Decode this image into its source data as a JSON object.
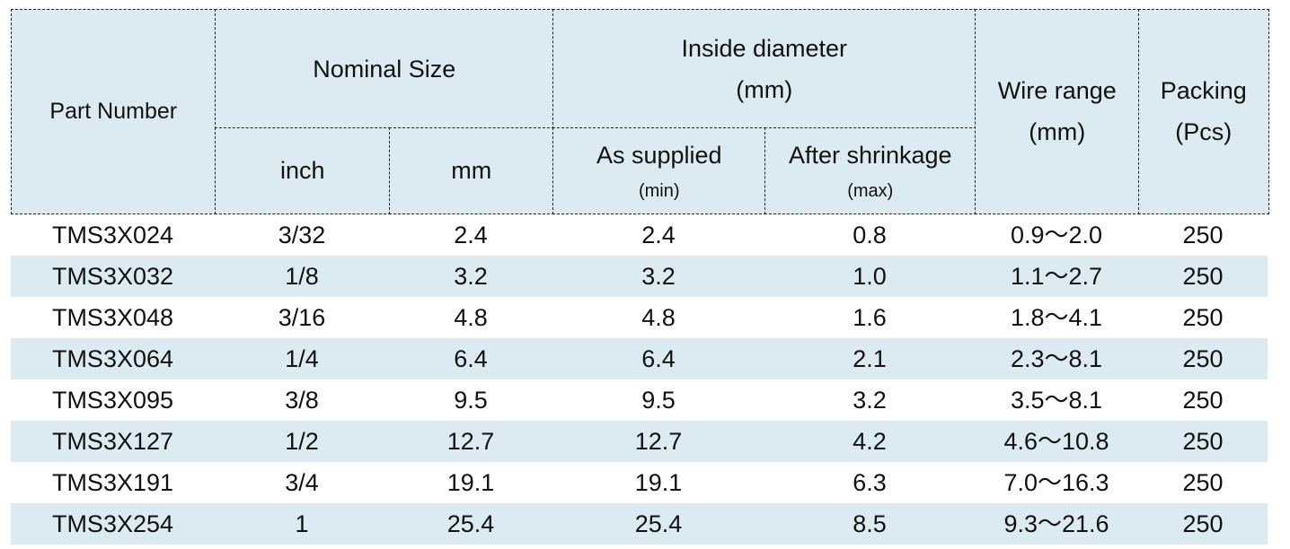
{
  "table": {
    "header": {
      "part_number": [
        "Part Number"
      ],
      "nominal_size": [
        "Nominal Size"
      ],
      "inch": [
        "inch"
      ],
      "mm": [
        "mm"
      ],
      "inside_diameter": [
        "Inside diameter",
        "(mm)"
      ],
      "as_supplied": [
        "As supplied",
        "(min)"
      ],
      "after_shrinkage": [
        "After shrinkage",
        "(max)"
      ],
      "wire_range": [
        "Wire range",
        "(mm)"
      ],
      "packing": [
        "Packing",
        "(Pcs)"
      ]
    },
    "rows": [
      [
        "TMS3X024",
        "3/32",
        "2.4",
        "2.4",
        "0.8",
        "0.9～2.0",
        "250"
      ],
      [
        "TMS3X032",
        "1/8",
        "3.2",
        "3.2",
        "1.0",
        "1.1～2.7",
        "250"
      ],
      [
        "TMS3X048",
        "3/16",
        "4.8",
        "4.8",
        "1.6",
        "1.8～4.1",
        "250"
      ],
      [
        "TMS3X064",
        "1/4",
        "6.4",
        "6.4",
        "2.1",
        "2.3～8.1",
        "250"
      ],
      [
        "TMS3X095",
        "3/8",
        "9.5",
        "9.5",
        "3.2",
        "3.5～8.1",
        "250"
      ],
      [
        "TMS3X127",
        "1/2",
        "12.7",
        "12.7",
        "4.2",
        "4.6～10.8",
        "250"
      ],
      [
        "TMS3X191",
        "3/4",
        "19.1",
        "19.1",
        "6.3",
        "7.0～16.3",
        "250"
      ],
      [
        "TMS3X254",
        "1",
        "25.4",
        "25.4",
        "8.5",
        "9.3～21.6",
        "250"
      ]
    ]
  }
}
